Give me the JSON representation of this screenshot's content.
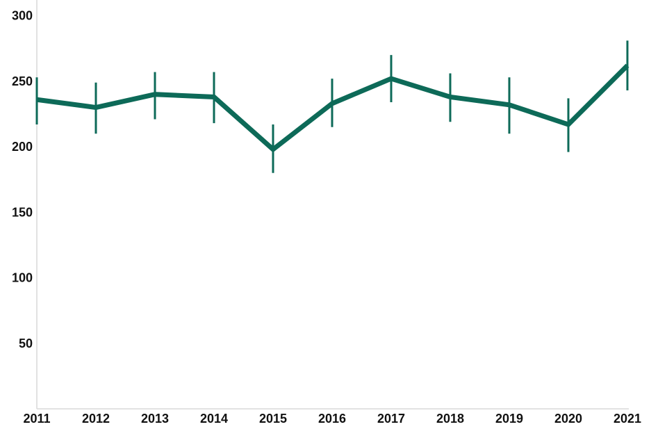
{
  "chart_data": {
    "type": "line",
    "title": "",
    "xlabel": "",
    "ylabel": "",
    "categories": [
      "2011",
      "2012",
      "2013",
      "2014",
      "2015",
      "2016",
      "2017",
      "2018",
      "2019",
      "2020",
      "2021"
    ],
    "values": [
      236,
      230,
      240,
      238,
      198,
      233,
      252,
      238,
      232,
      217,
      262
    ],
    "error_low": [
      217,
      210,
      221,
      218,
      180,
      215,
      234,
      219,
      210,
      196,
      243
    ],
    "error_high": [
      253,
      249,
      257,
      257,
      217,
      252,
      270,
      256,
      253,
      237,
      281
    ],
    "yticks": [
      50,
      100,
      150,
      200,
      250,
      300
    ],
    "ylim": [
      0,
      312
    ],
    "grid": false,
    "legend": "none",
    "line_color": "#0d6a58",
    "axis_color": "#d9d9d9",
    "tick_label_color": "#111111"
  }
}
